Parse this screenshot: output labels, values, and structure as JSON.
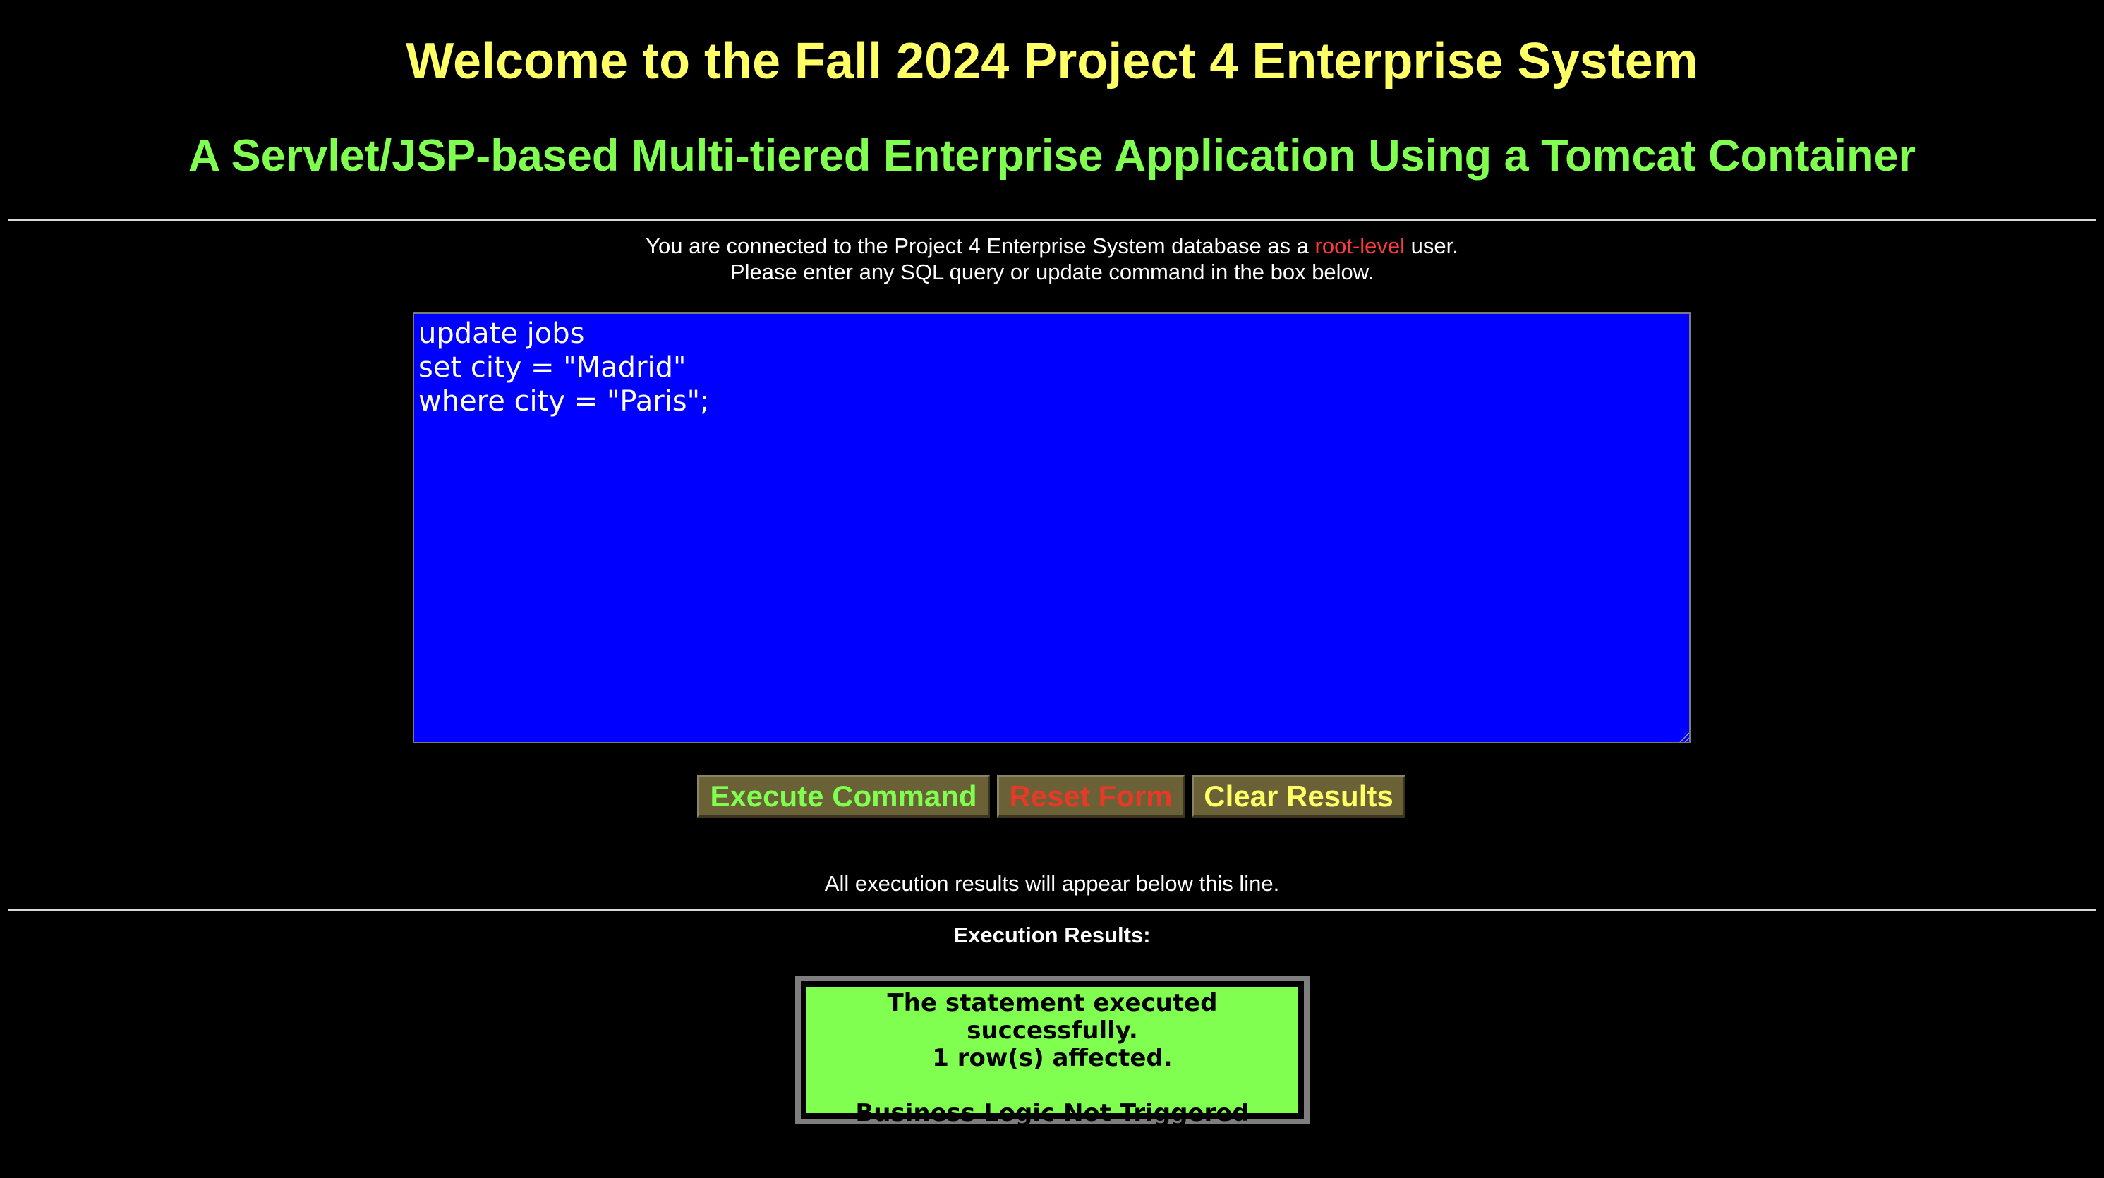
{
  "header": {
    "title": "Welcome to the Fall 2024 Project 4 Enterprise System",
    "subtitle": "A Servlet/JSP-based Multi-tiered Enterprise Application Using a Tomcat Container"
  },
  "intro": {
    "line1_prefix": "You are connected to the Project 4 Enterprise System database as a ",
    "user_level": "root-level",
    "line1_suffix": " user.",
    "line2": "Please enter any SQL query or update command in the box below."
  },
  "query": {
    "value": "update jobs\nset city = \"Madrid\"\nwhere city = \"Paris\";"
  },
  "buttons": {
    "execute_label": "Execute Command",
    "reset_label": "Reset Form",
    "clear_label": "Clear Results"
  },
  "results": {
    "note": "All execution results will appear below this line.",
    "heading": "Execution Results:",
    "message_line1": "The statement executed successfully.",
    "message_line2": "1 row(s) affected.",
    "message_line3": "Business Logic Not Triggered"
  },
  "colors": {
    "background": "#000000",
    "title": "#ffff66",
    "subtitle": "#80ff50",
    "query_box": "#0000ff",
    "result_box": "#80ff50",
    "button_bg": "#6a6136",
    "user_level": "#ff3a3a"
  }
}
